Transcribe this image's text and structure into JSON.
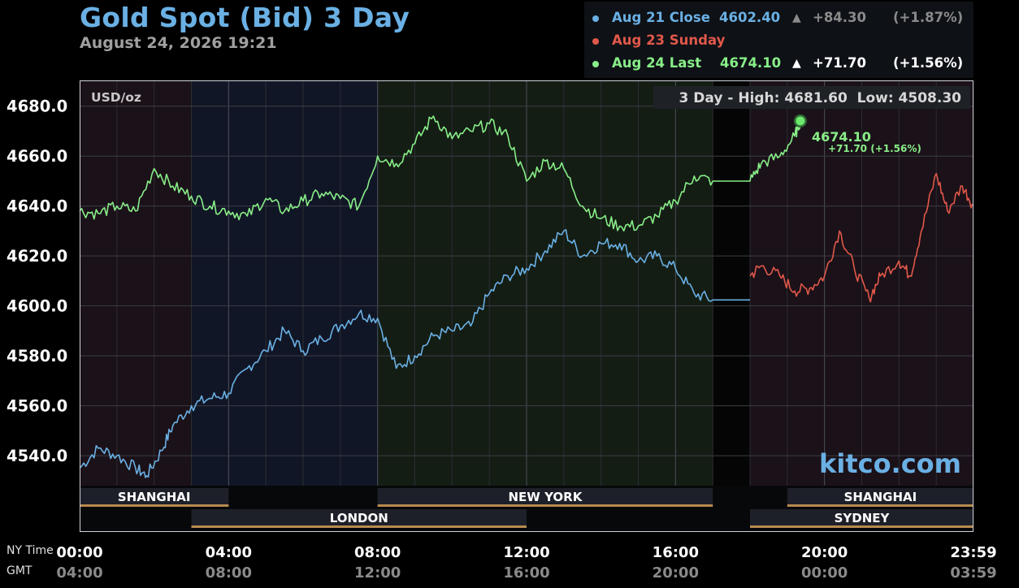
{
  "header": {
    "title": "Gold Spot (Bid) 3 Day",
    "subtitle": "August 24, 2026 19:21"
  },
  "legend": [
    {
      "label": "Aug 21 Close",
      "value": "4602.40",
      "arrow": "▲",
      "change": "+84.30",
      "pct": "(+1.87%)",
      "color": "#6ab0e4",
      "dim": true
    },
    {
      "label": "Aug 23 Sunday",
      "value": "",
      "arrow": "",
      "change": "",
      "pct": "",
      "color": "#e0584a",
      "dim": false
    },
    {
      "label": "Aug 24 Last",
      "value": "4674.10",
      "arrow": "▲",
      "change": "+71.70",
      "pct": "(+1.56%)",
      "color": "#88ee88",
      "dim": false
    }
  ],
  "panel": {
    "unit": "USD/oz",
    "range_text": "3 Day - High: 4681.60  Low: 4508.30",
    "watermark": "kitco.com",
    "last_value": "4674.10",
    "last_change": "+71.70 (+1.56%)"
  },
  "axis": {
    "ny_label": "NY Time",
    "gmt_label": "GMT",
    "ny_ticks": [
      "00:00",
      "04:00",
      "08:00",
      "12:00",
      "16:00",
      "20:00",
      "23:59"
    ],
    "gmt_ticks": [
      "04:00",
      "08:00",
      "12:00",
      "16:00",
      "20:00",
      "00:00",
      "03:59"
    ]
  },
  "sessions": [
    {
      "name": "SHANGHAI",
      "start": 0,
      "end": 4,
      "row": 0
    },
    {
      "name": "NEW YORK",
      "start": 8,
      "end": 17,
      "row": 0
    },
    {
      "name": "SHANGHAI",
      "start": 19,
      "end": 24,
      "row": 0
    },
    {
      "name": "LONDON",
      "start": 3,
      "end": 12,
      "row": 1
    },
    {
      "name": "SYDNEY",
      "start": 18,
      "end": 24,
      "row": 1
    }
  ],
  "chart_data": {
    "type": "line",
    "title": "Gold Spot (Bid) 3 Day",
    "ylabel": "USD/oz",
    "xlabel": "NY Time",
    "ylim": [
      4528,
      4690
    ],
    "xlim": [
      0,
      24
    ],
    "yticks": [
      4540.0,
      4560.0,
      4580.0,
      4600.0,
      4620.0,
      4640.0,
      4660.0,
      4680.0
    ],
    "grid": true,
    "legend_position": "top-right",
    "series": [
      {
        "name": "Aug 21 Close",
        "color": "#6ab0e4",
        "x": [
          0,
          0.5,
          1.0,
          1.5,
          1.8,
          2.2,
          2.5,
          3.0,
          3.5,
          4.0,
          4.5,
          5.0,
          5.5,
          6.0,
          6.5,
          7.0,
          7.5,
          8.0,
          8.5,
          9.0,
          9.5,
          10.0,
          10.5,
          11.0,
          11.5,
          12.0,
          12.5,
          13.0,
          13.5,
          14.0,
          14.5,
          15.0,
          15.5,
          16.0,
          16.5,
          17.0,
          18.0
        ],
        "values": [
          4535,
          4543,
          4540,
          4535,
          4532,
          4542,
          4552,
          4560,
          4563,
          4565,
          4575,
          4582,
          4590,
          4582,
          4587,
          4592,
          4597,
          4595,
          4575,
          4580,
          4588,
          4590,
          4592,
          4605,
          4612,
          4615,
          4622,
          4630,
          4620,
          4625,
          4625,
          4618,
          4620,
          4615,
          4605,
          4602.4,
          4602.4
        ]
      },
      {
        "name": "Aug 23 Sunday",
        "color": "#e0584a",
        "x": [
          18.0,
          18.3,
          18.8,
          19.2,
          19.6,
          20.0,
          20.4,
          20.8,
          21.2,
          21.5,
          22.0,
          22.3,
          22.6,
          23.0,
          23.3,
          23.7,
          24.0
        ],
        "values": [
          4612,
          4616,
          4612,
          4606,
          4607,
          4612,
          4630,
          4615,
          4603,
          4612,
          4618,
          4612,
          4630,
          4653,
          4638,
          4648,
          4640
        ]
      },
      {
        "name": "Aug 24 Last",
        "color": "#88ee88",
        "x": [
          0,
          0.5,
          1.0,
          1.5,
          2.0,
          2.5,
          3.0,
          3.5,
          4.0,
          4.5,
          5.0,
          5.5,
          6.0,
          6.5,
          7.0,
          7.5,
          8.0,
          8.5,
          9.0,
          9.5,
          10.0,
          10.5,
          11.0,
          11.5,
          12.0,
          12.5,
          13.0,
          13.5,
          14.0,
          14.5,
          15.0,
          15.5,
          16.0,
          16.5,
          17.0,
          18.0,
          18.3,
          18.8,
          19.2,
          19.35
        ],
        "values": [
          4638,
          4637,
          4640,
          4638,
          4655,
          4648,
          4644,
          4640,
          4638,
          4636,
          4643,
          4638,
          4642,
          4645,
          4643,
          4640,
          4660,
          4657,
          4665,
          4676,
          4667,
          4670,
          4673,
          4668,
          4650,
          4658,
          4655,
          4640,
          4635,
          4632,
          4632,
          4636,
          4642,
          4652,
          4650,
          4650,
          4657,
          4660,
          4668,
          4674.1
        ]
      }
    ]
  }
}
